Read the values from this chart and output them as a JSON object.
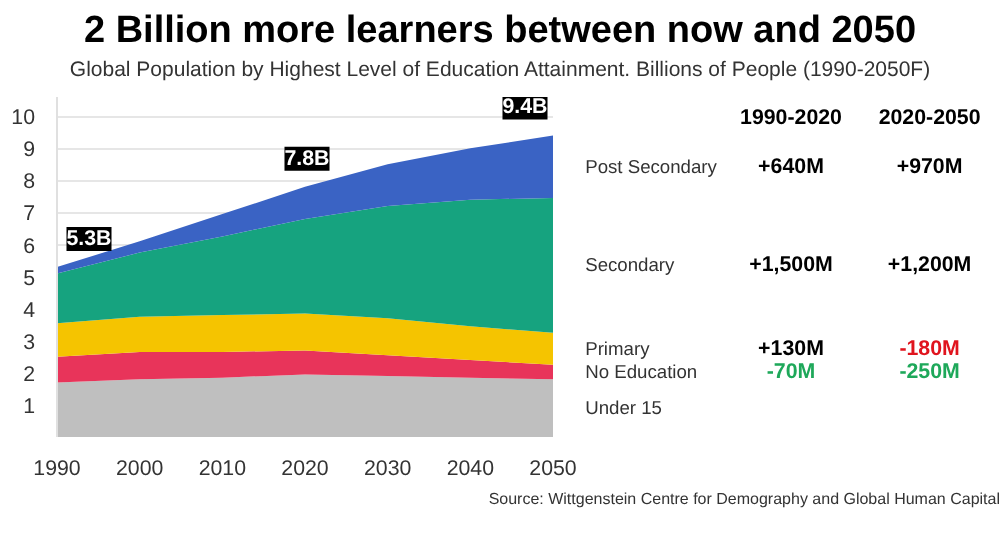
{
  "chart_data": {
    "type": "area",
    "stacked": true,
    "title": "2 Billion more learners between now and 2050",
    "subtitle": "Global Population by Highest Level of Education Attainment. Billions of People (1990-2050F)",
    "x": [
      1990,
      2000,
      2010,
      2020,
      2030,
      2040,
      2050
    ],
    "xlim": [
      1990,
      2050
    ],
    "xticks": [
      1990,
      2000,
      2010,
      2020,
      2030,
      2040,
      2050
    ],
    "ylim": [
      0,
      10.6
    ],
    "yticks": [
      1,
      2,
      3,
      4,
      5,
      6,
      7,
      8,
      9,
      10
    ],
    "grid": "y",
    "series": [
      {
        "name": "Under 15",
        "color": "#bfbfbf",
        "values": [
          1.7,
          1.8,
          1.85,
          1.95,
          1.9,
          1.85,
          1.8
        ]
      },
      {
        "name": "No Education",
        "color": "#e8345a",
        "values": [
          0.8,
          0.85,
          0.8,
          0.75,
          0.65,
          0.55,
          0.45
        ]
      },
      {
        "name": "Primary",
        "color": "#f5c400",
        "values": [
          1.05,
          1.1,
          1.15,
          1.15,
          1.15,
          1.05,
          1.0
        ]
      },
      {
        "name": "Secondary",
        "color": "#16a37f",
        "values": [
          1.55,
          2.0,
          2.45,
          2.95,
          3.5,
          3.95,
          4.2
        ]
      },
      {
        "name": "Post Secondary",
        "color": "#3a63c4",
        "values": [
          0.2,
          0.35,
          0.7,
          1.0,
          1.3,
          1.6,
          1.95
        ]
      }
    ],
    "annotations": [
      {
        "text": "5.3B",
        "x": 1990,
        "y": 5.3
      },
      {
        "text": "7.8B",
        "x": 2020,
        "y": 7.8
      },
      {
        "text": "9.4B",
        "x": 2050,
        "y": 9.4
      },
      "1990-2020",
      "2020-2050",
      "+640M",
      "+970M",
      "+1,500M",
      "+1,200M",
      "+130M",
      "-180M",
      "-70M",
      "-250M",
      "Source: Wittgenstein Centre for Demography and Global Human Capital"
    ]
  }
}
